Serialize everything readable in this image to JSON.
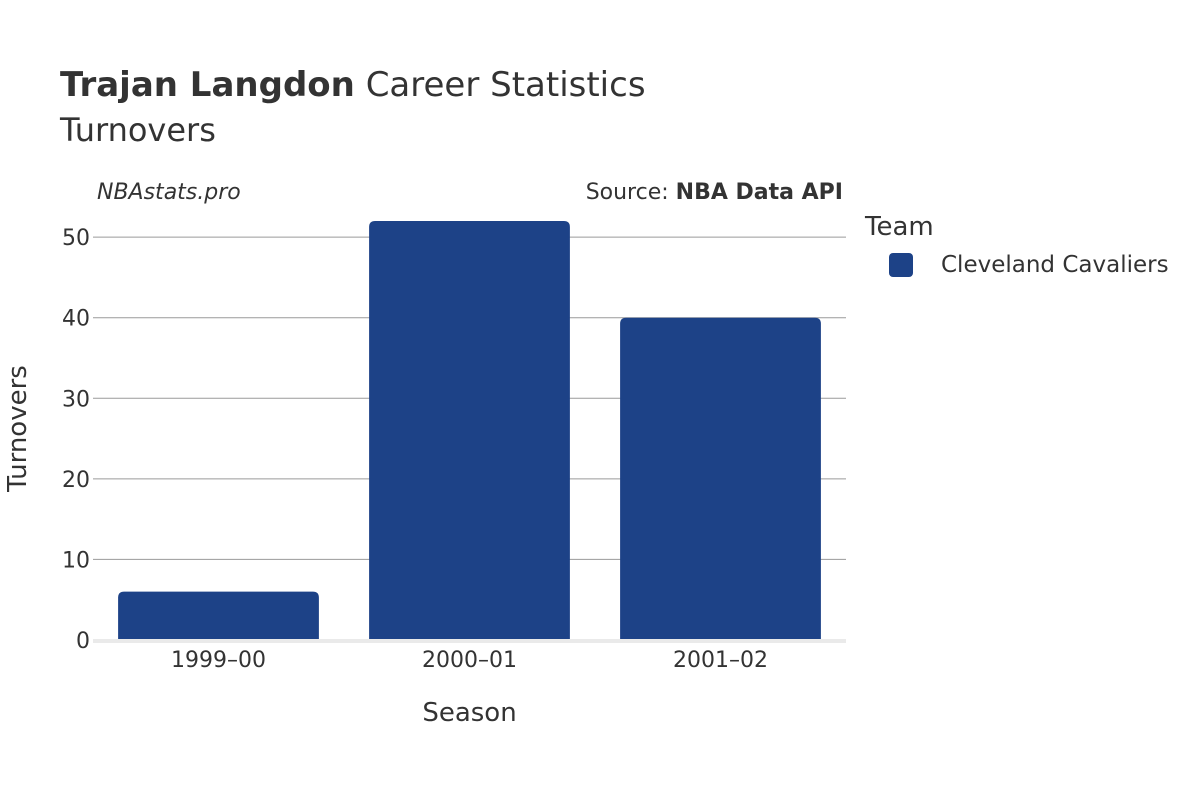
{
  "header": {
    "player": "Trajan Langdon",
    "title_suffix": "Career Statistics",
    "subtitle": "Turnovers"
  },
  "watermark": "NBAstats.pro",
  "source": {
    "prefix": "Source: ",
    "name": "NBA Data API"
  },
  "legend": {
    "title": "Team",
    "items": [
      {
        "label": "Cleveland Cavaliers",
        "color": "#1d4287"
      }
    ]
  },
  "chart_data": {
    "type": "bar",
    "categories": [
      "1999–00",
      "2000–01",
      "2001–02"
    ],
    "series": [
      {
        "name": "Cleveland Cavaliers",
        "values": [
          6,
          52,
          40
        ],
        "color": "#1d4287"
      }
    ],
    "xlabel": "Season",
    "ylabel": "Turnovers",
    "ylim": [
      0,
      53
    ],
    "yticks": [
      0,
      10,
      20,
      30,
      40,
      50
    ],
    "grid": true,
    "legend_position": "right"
  }
}
